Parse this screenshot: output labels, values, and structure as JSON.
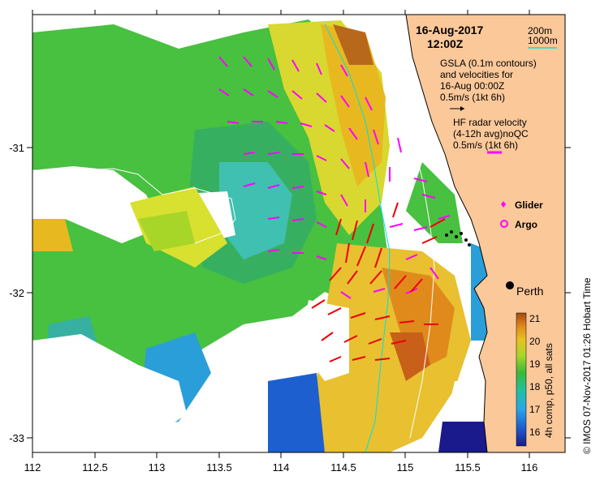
{
  "header": {
    "date": "16-Aug-2017",
    "time": "12:00Z"
  },
  "legend": {
    "contour_200m": "200m",
    "contour_1000m": "1000m",
    "gsla_line1": "GSLA (0.1m contours)",
    "gsla_line2": "and velocities for",
    "gsla_line3": "16-Aug 00:00Z",
    "gsla_scale": "0.5m/s (1kt 6h)",
    "hf_line1": "HF radar velocity",
    "hf_line2": "(4-12h avg)noQC",
    "hf_scale": "0.5m/s (1kt 6h)",
    "glider_label": "Glider",
    "argo_label": "Argo"
  },
  "axes": {
    "x_ticks": [
      "112",
      "112.5",
      "113",
      "113.5",
      "114",
      "114.5",
      "115",
      "115.5",
      "116"
    ],
    "y_ticks": [
      "-31",
      "-32",
      "-33"
    ]
  },
  "city": {
    "name": "Perth"
  },
  "colorbar": {
    "ticks": [
      "21",
      "20",
      "19",
      "18",
      "17",
      "16"
    ],
    "title": "4h comp, p50, all sats"
  },
  "credit": "© IMOS 07-Nov-2017 01:26 Hobart Time",
  "colors": {
    "land": "#fbc89a",
    "gsla_arrow": "#ff00ff",
    "hf_arrow": "#ee0000",
    "contour_cyan": "#00e0e0"
  }
}
